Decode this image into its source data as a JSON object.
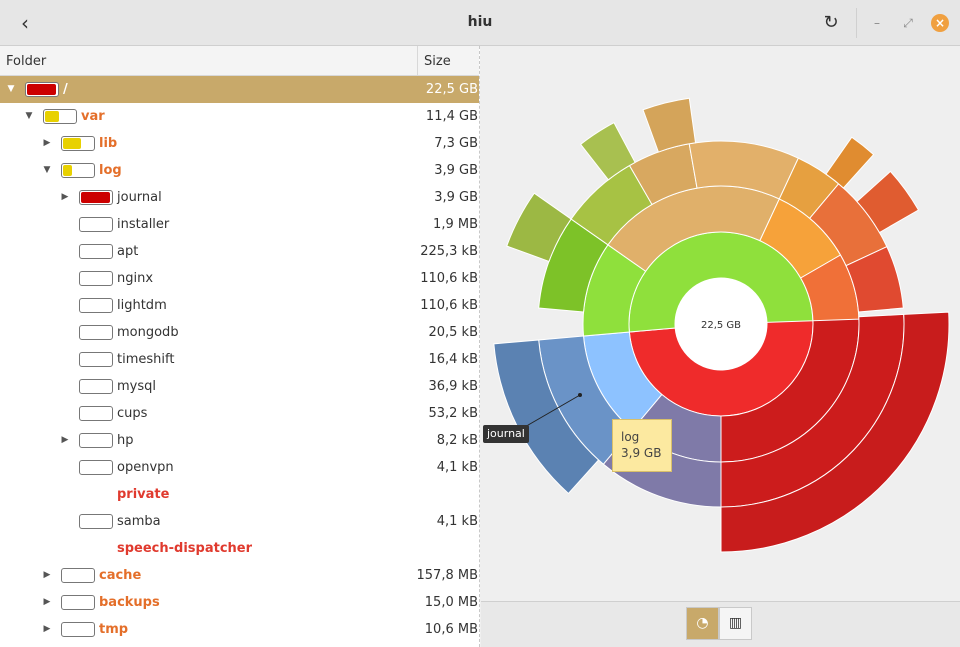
{
  "window": {
    "title": "hiu"
  },
  "header": {
    "folder_label": "Folder",
    "size_label": "Size"
  },
  "rows": [
    {
      "name": "/",
      "size": "22,5 GB",
      "depth": 0,
      "expander": "open",
      "fill": 0.95,
      "color": "#cc0000",
      "kind": "root",
      "selected": true
    },
    {
      "name": "var",
      "size": "11,4 GB",
      "depth": 1,
      "expander": "open",
      "fill": 0.45,
      "color": "#e8d100",
      "kind": "dir"
    },
    {
      "name": "lib",
      "size": "7,3 GB",
      "depth": 2,
      "expander": "closed",
      "fill": 0.6,
      "color": "#e8d100",
      "kind": "dir"
    },
    {
      "name": "log",
      "size": "3,9 GB",
      "depth": 2,
      "expander": "open",
      "fill": 0.3,
      "color": "#e8d100",
      "kind": "dir"
    },
    {
      "name": "journal",
      "size": "3,9 GB",
      "depth": 3,
      "expander": "closed",
      "fill": 0.95,
      "color": "#cc0000",
      "kind": "file"
    },
    {
      "name": "installer",
      "size": "1,9 MB",
      "depth": 3,
      "expander": "none",
      "fill": 0,
      "color": "#cc0000",
      "kind": "file"
    },
    {
      "name": "apt",
      "size": "225,3 kB",
      "depth": 3,
      "expander": "none",
      "fill": 0,
      "color": "#cc0000",
      "kind": "file"
    },
    {
      "name": "nginx",
      "size": "110,6 kB",
      "depth": 3,
      "expander": "none",
      "fill": 0,
      "color": "#cc0000",
      "kind": "file"
    },
    {
      "name": "lightdm",
      "size": "110,6 kB",
      "depth": 3,
      "expander": "none",
      "fill": 0,
      "color": "#cc0000",
      "kind": "file"
    },
    {
      "name": "mongodb",
      "size": "20,5 kB",
      "depth": 3,
      "expander": "none",
      "fill": 0,
      "color": "#cc0000",
      "kind": "file"
    },
    {
      "name": "timeshift",
      "size": "16,4 kB",
      "depth": 3,
      "expander": "none",
      "fill": 0,
      "color": "#cc0000",
      "kind": "file"
    },
    {
      "name": "mysql",
      "size": "36,9 kB",
      "depth": 3,
      "expander": "none",
      "fill": 0,
      "color": "#cc0000",
      "kind": "file"
    },
    {
      "name": "cups",
      "size": "53,2 kB",
      "depth": 3,
      "expander": "none",
      "fill": 0,
      "color": "#cc0000",
      "kind": "file"
    },
    {
      "name": "hp",
      "size": "8,2 kB",
      "depth": 3,
      "expander": "closed",
      "fill": 0,
      "color": "#cc0000",
      "kind": "file"
    },
    {
      "name": "openvpn",
      "size": "4,1 kB",
      "depth": 3,
      "expander": "none",
      "fill": 0,
      "color": "#cc0000",
      "kind": "file"
    },
    {
      "name": "private",
      "size": "",
      "depth": 3,
      "expander": "none",
      "fill": 0,
      "color": "#cc0000",
      "kind": "err",
      "nobox": true
    },
    {
      "name": "samba",
      "size": "4,1 kB",
      "depth": 3,
      "expander": "none",
      "fill": 0,
      "color": "#cc0000",
      "kind": "file"
    },
    {
      "name": "speech-dispatcher",
      "size": "",
      "depth": 3,
      "expander": "none",
      "fill": 0,
      "color": "#cc0000",
      "kind": "err",
      "nobox": true
    },
    {
      "name": "cache",
      "size": "157,8 MB",
      "depth": 2,
      "expander": "closed",
      "fill": 0,
      "color": "#e8d100",
      "kind": "dir"
    },
    {
      "name": "backups",
      "size": "15,0 MB",
      "depth": 2,
      "expander": "closed",
      "fill": 0,
      "color": "#e8d100",
      "kind": "dir"
    },
    {
      "name": "tmp",
      "size": "10,6 MB",
      "depth": 2,
      "expander": "closed",
      "fill": 0,
      "color": "#e8d100",
      "kind": "dir"
    }
  ],
  "chart": {
    "center_label": "22,5 GB",
    "tooltip": {
      "name": "log",
      "size": "3,9 GB"
    },
    "callout": "journal"
  },
  "icons": {
    "back": "chevron-left-icon",
    "reload": "reload-icon",
    "minimize": "minimize-icon",
    "maximize": "maximize-icon",
    "close": "close-icon",
    "ring": "ring-chart-icon",
    "treemap": "treemap-icon"
  }
}
